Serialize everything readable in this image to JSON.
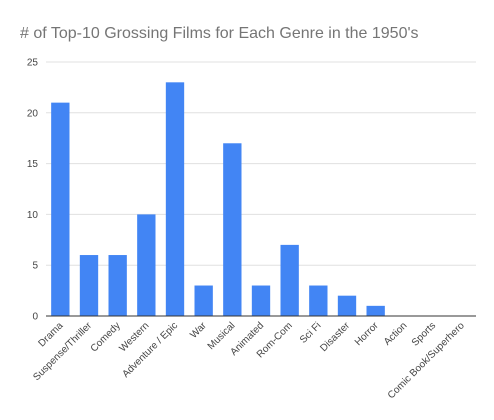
{
  "chart_data": {
    "type": "bar",
    "title": "# of Top-10 Grossing Films for Each Genre in the 1950's",
    "xlabel": "",
    "ylabel": "",
    "categories": [
      "Drama",
      "Suspense/Thriller",
      "Comedy",
      "Western",
      "Adventure / Epic",
      "War",
      "Musical",
      "Animated",
      "Rom-Com",
      "Sci Fi",
      "Disaster",
      "Horror",
      "Action",
      "Sports",
      "Comic Book/Superhero"
    ],
    "values": [
      21,
      6,
      6,
      10,
      23,
      3,
      17,
      3,
      7,
      3,
      2,
      1,
      0,
      0,
      0
    ],
    "ylim": [
      0,
      25
    ],
    "yticks": [
      0,
      5,
      10,
      15,
      20,
      25
    ],
    "grid": true,
    "legend": "none",
    "bar_color": "#4285f4"
  }
}
